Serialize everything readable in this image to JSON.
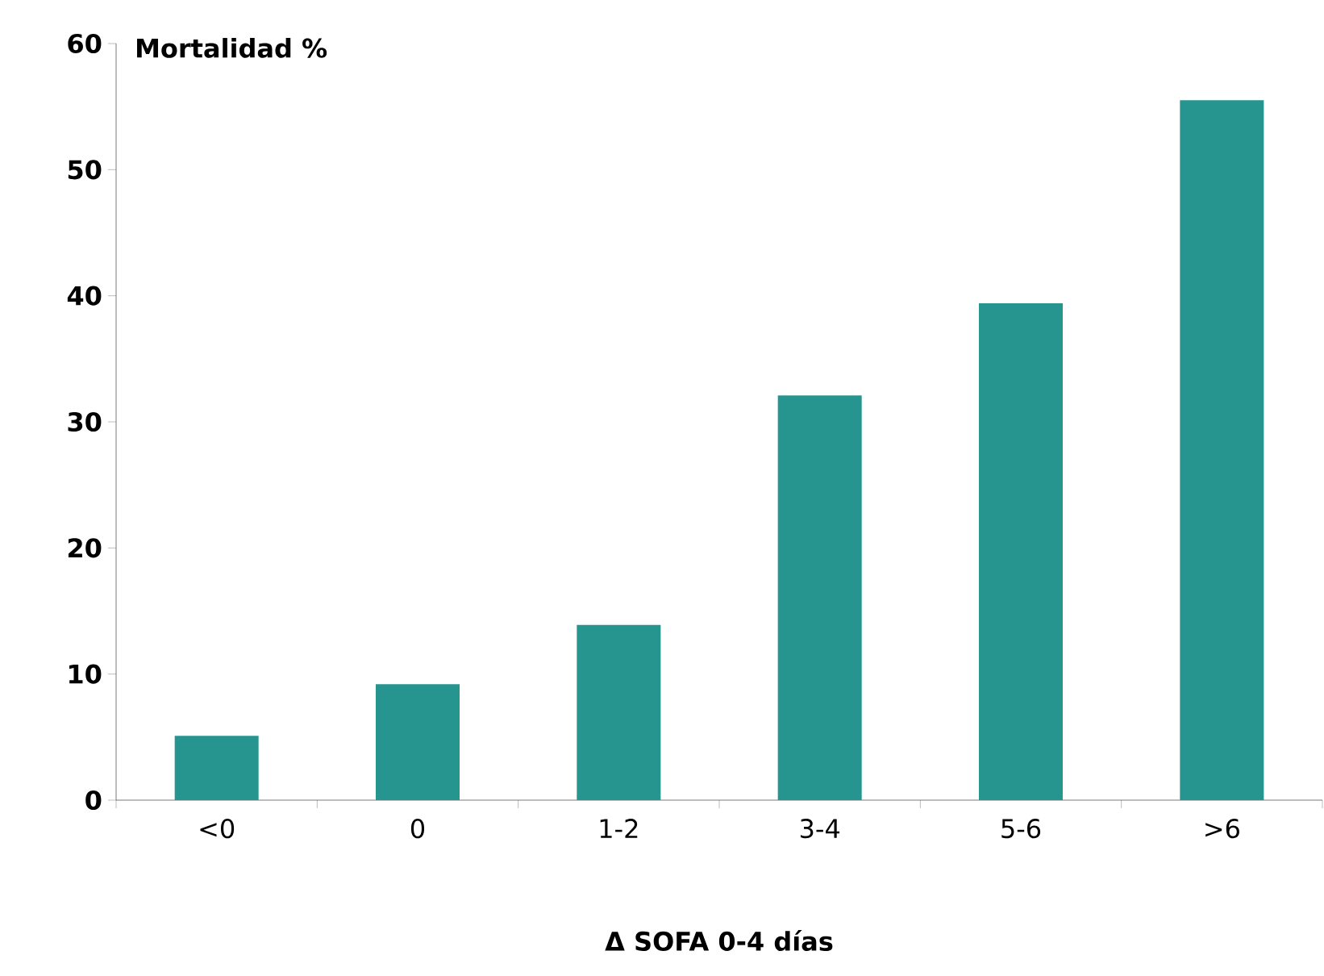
{
  "chart_data": {
    "type": "bar",
    "xlabel": "Δ SOFA 0-4 días",
    "ylabel": "Mortalidad %",
    "categories": [
      "<0",
      "0",
      "1-2",
      "3-4",
      "5-6",
      ">6"
    ],
    "values": [
      5.1,
      9.2,
      13.9,
      32.1,
      39.4,
      55.5
    ],
    "color": "#26958f",
    "ylim": [
      0,
      60
    ],
    "yticks": [
      0,
      10,
      20,
      30,
      40,
      50,
      60
    ]
  }
}
